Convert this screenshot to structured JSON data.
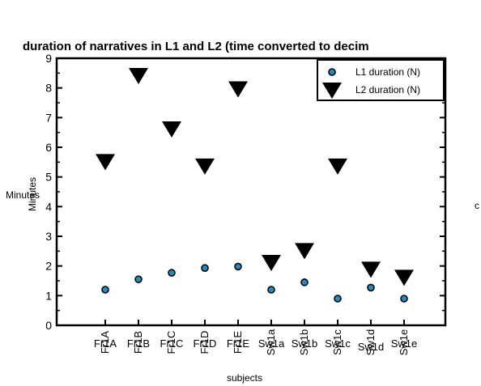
{
  "chart_data": {
    "type": "scatter",
    "title": "duration of narratives in L1 and L2 (time converted to decim",
    "xlabel": "subjects",
    "ylabel": "Minutes",
    "ylabel_overlay": "Minutes",
    "right_edge_text": "c",
    "categories": [
      "Fr1A",
      "Fr1B",
      "Fr1C",
      "Fr1D",
      "Fr1E",
      "Sw1a",
      "Sw1b",
      "Sw1c",
      "Sw1d",
      "Sw1e"
    ],
    "category_label_overlay": [
      "Fr1A",
      "Fr1B",
      "Fr1C",
      "Fr1D",
      "Fr1E",
      "Sw1a",
      "Sw1b",
      "Sw1c",
      "Sw1d",
      "Sw1e"
    ],
    "ylim": [
      0,
      9
    ],
    "yticks": [
      "0",
      "1",
      "2",
      "3",
      "4",
      "5",
      "6",
      "7",
      "8",
      "9"
    ],
    "grid": false,
    "legend_position": "top-right",
    "series": [
      {
        "name": "L1 duration (N)",
        "marker": "circle",
        "color": "#1a8fc8",
        "values": [
          1.2,
          1.55,
          1.77,
          1.93,
          1.98,
          1.2,
          1.45,
          0.9,
          1.27,
          0.9
        ]
      },
      {
        "name": "L2 duration (N)",
        "marker": "triangle-down",
        "color": "#000000",
        "values": [
          5.5,
          8.4,
          6.6,
          5.35,
          7.95,
          2.1,
          2.5,
          5.35,
          1.87,
          1.6
        ]
      }
    ]
  }
}
